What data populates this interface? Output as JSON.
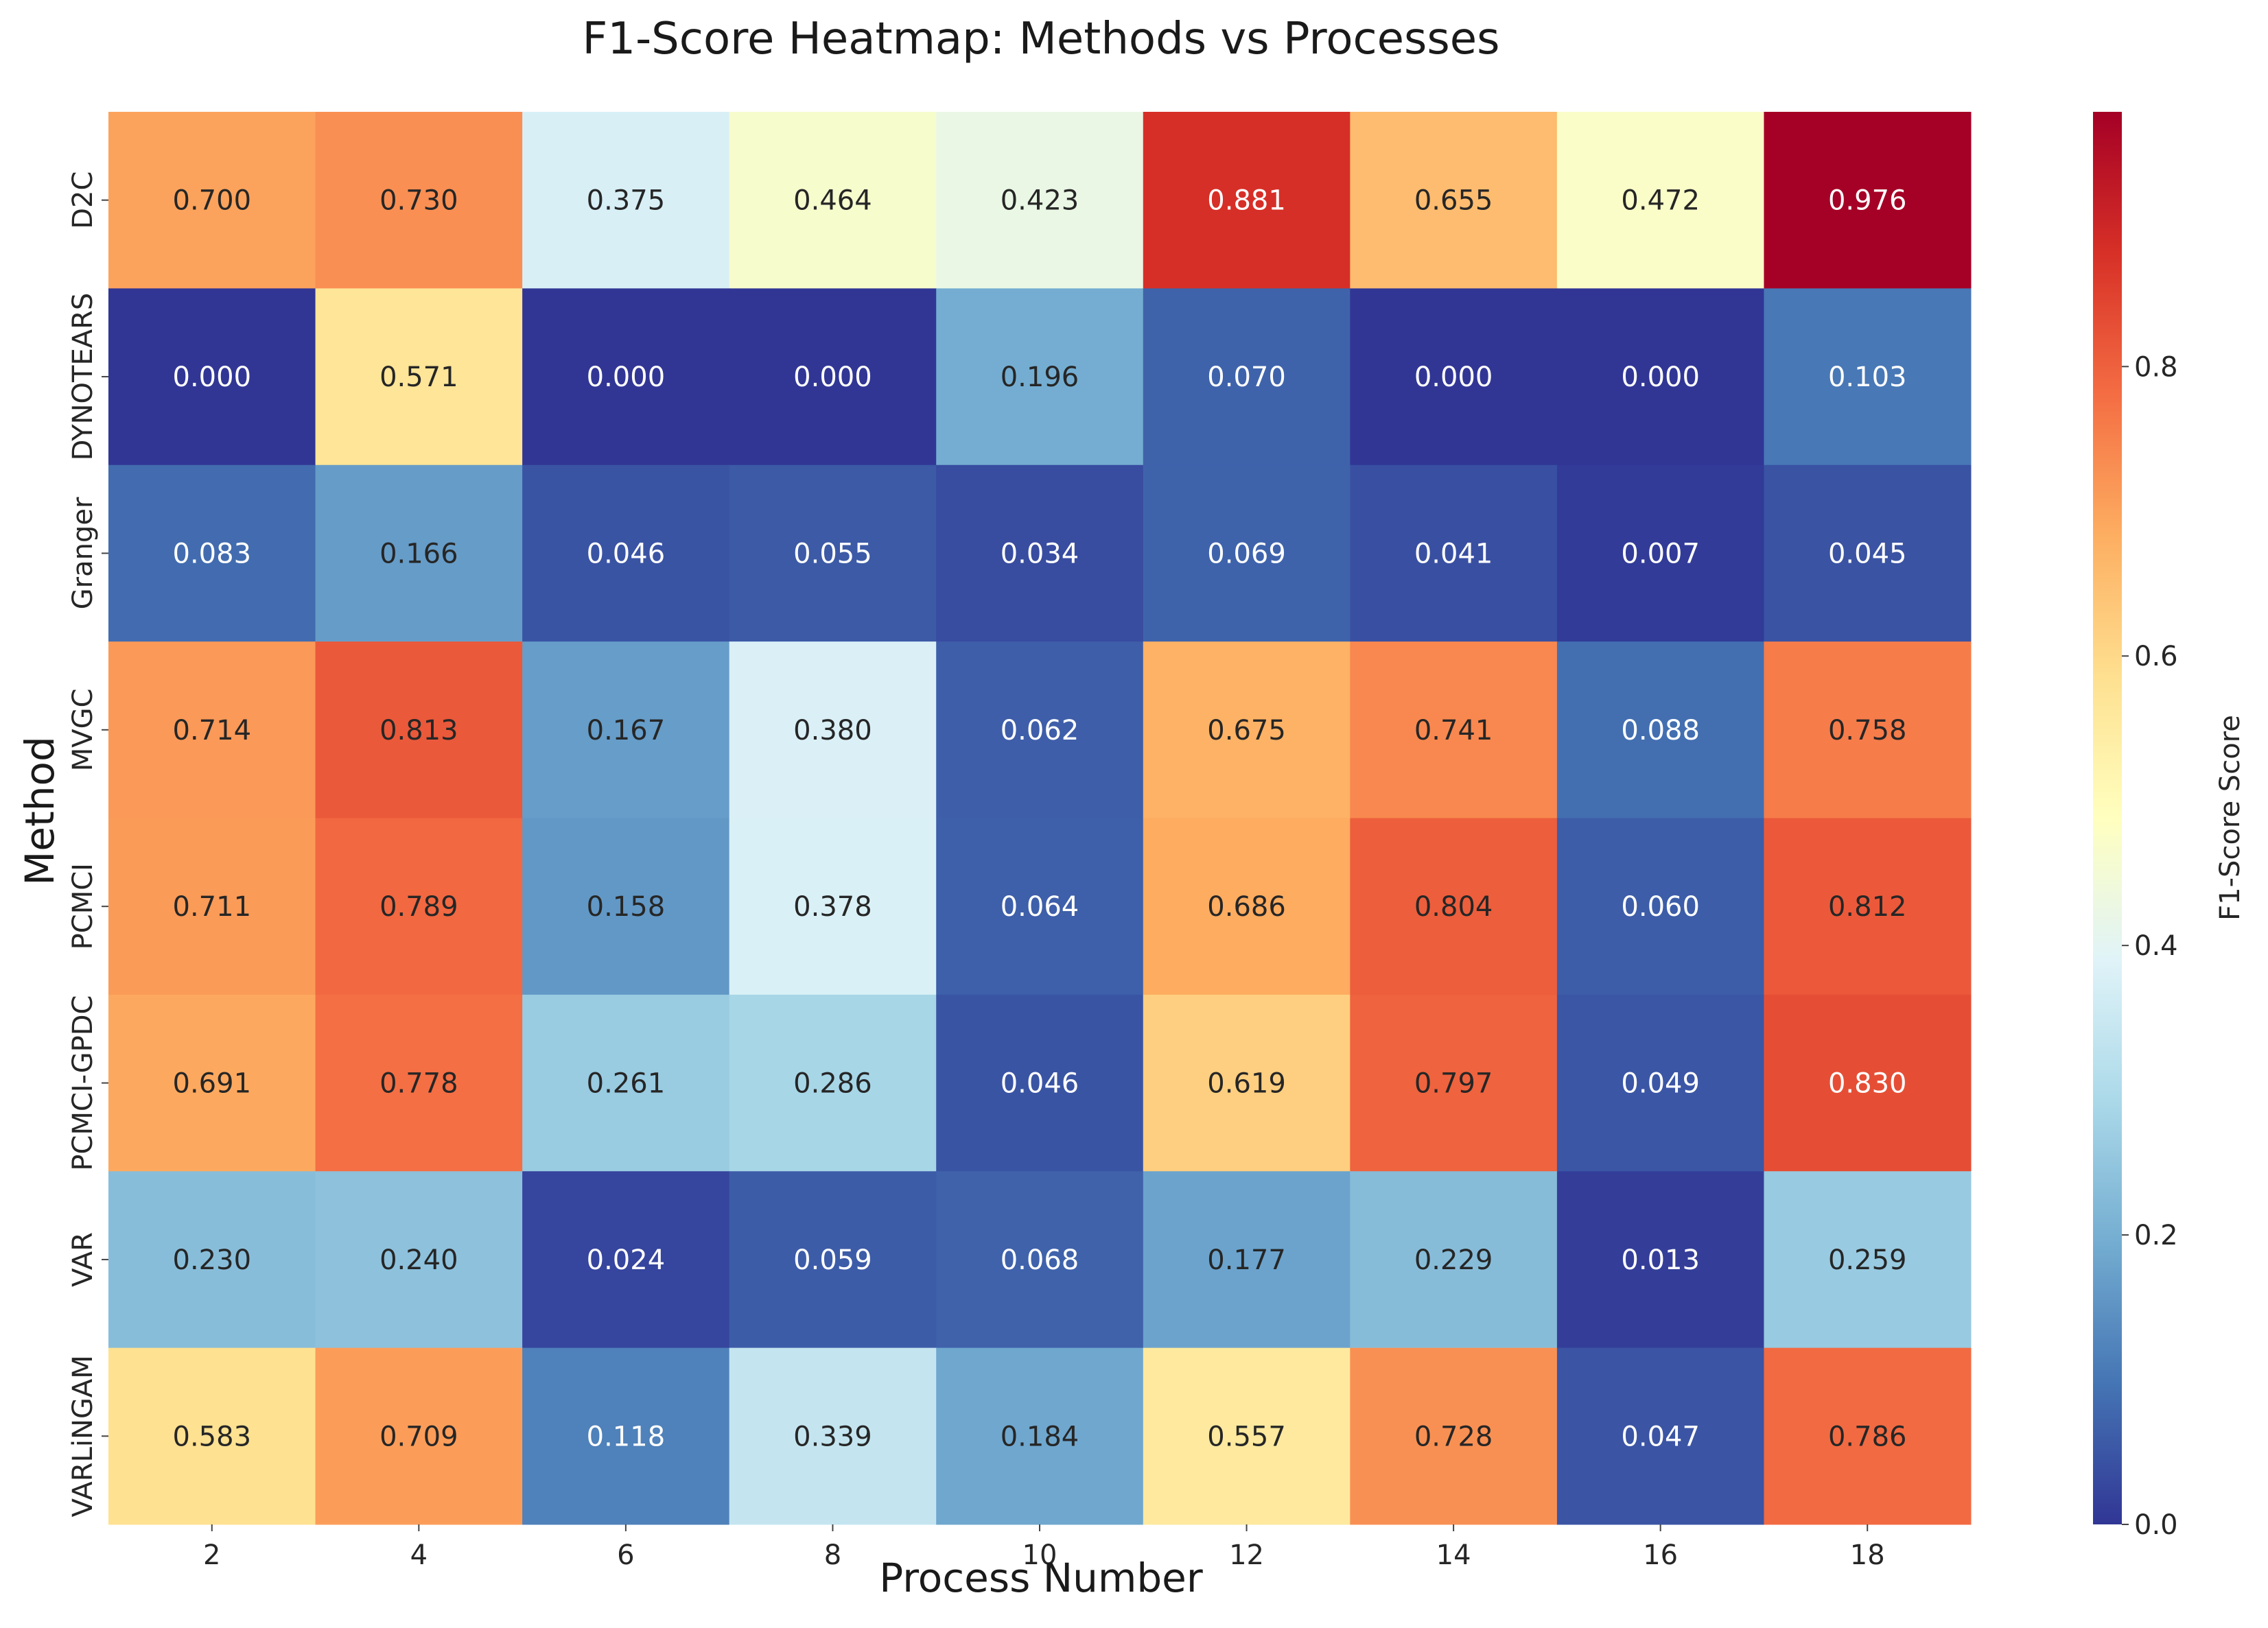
{
  "chart_data": {
    "type": "heatmap",
    "title": "F1-Score Heatmap: Methods vs Processes",
    "xlabel": "Process Number",
    "ylabel": "Method",
    "x_categories": [
      "2",
      "4",
      "6",
      "8",
      "10",
      "12",
      "14",
      "16",
      "18"
    ],
    "y_categories": [
      "D2C",
      "DYNOTEARS",
      "Granger",
      "MVGC",
      "PCMCI",
      "PCMCI-GPDC",
      "VAR",
      "VARLiNGAM"
    ],
    "values": [
      [
        0.7,
        0.73,
        0.375,
        0.464,
        0.423,
        0.881,
        0.655,
        0.472,
        0.976
      ],
      [
        0.0,
        0.571,
        0.0,
        0.0,
        0.196,
        0.07,
        0.0,
        0.0,
        0.103
      ],
      [
        0.083,
        0.166,
        0.046,
        0.055,
        0.034,
        0.069,
        0.041,
        0.007,
        0.045
      ],
      [
        0.714,
        0.813,
        0.167,
        0.38,
        0.062,
        0.675,
        0.741,
        0.088,
        0.758
      ],
      [
        0.711,
        0.789,
        0.158,
        0.378,
        0.064,
        0.686,
        0.804,
        0.06,
        0.812
      ],
      [
        0.691,
        0.778,
        0.261,
        0.286,
        0.046,
        0.619,
        0.797,
        0.049,
        0.83
      ],
      [
        0.23,
        0.24,
        0.024,
        0.059,
        0.068,
        0.177,
        0.229,
        0.013,
        0.259
      ],
      [
        0.583,
        0.709,
        0.118,
        0.339,
        0.184,
        0.557,
        0.728,
        0.047,
        0.786
      ]
    ],
    "value_format": "3 decimals",
    "colormap": "RdYlBu_r",
    "vmin": 0.0,
    "vmax": 0.976,
    "colorbar": {
      "label": "F1-Score Score",
      "ticks": [
        "0.0",
        "0.2",
        "0.4",
        "0.6",
        "0.8"
      ],
      "tick_values": [
        0.0,
        0.2,
        0.4,
        0.6,
        0.8
      ]
    },
    "colors": [
      "#313695",
      "#4575b4",
      "#74add1",
      "#abd9e9",
      "#e0f3f8",
      "#ffffbf",
      "#fee090",
      "#fdae61",
      "#f46d43",
      "#d73027",
      "#a50026"
    ]
  }
}
